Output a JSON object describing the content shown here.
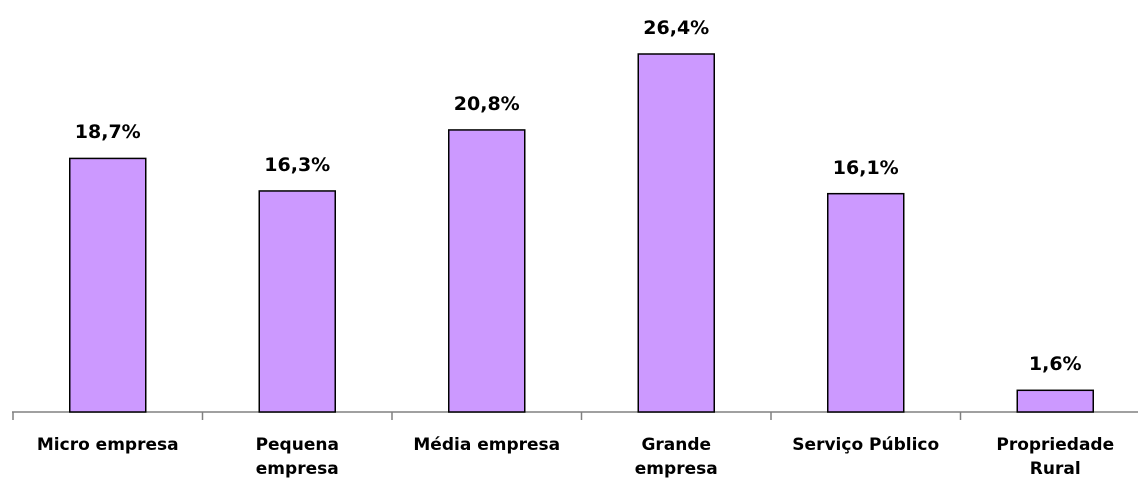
{
  "chart_data": {
    "type": "bar",
    "categories": [
      "Micro empresa",
      "Pequena\nempresa",
      "Média empresa",
      "Grande\nempresa",
      "Serviço Público",
      "Propriedade\nRural"
    ],
    "values": [
      18.7,
      16.3,
      20.8,
      26.4,
      16.1,
      1.6
    ],
    "value_labels": [
      "18,7%",
      "16,3%",
      "20,8%",
      "26,4%",
      "16,1%",
      "1,6%"
    ],
    "color": "#cc99ff"
  }
}
